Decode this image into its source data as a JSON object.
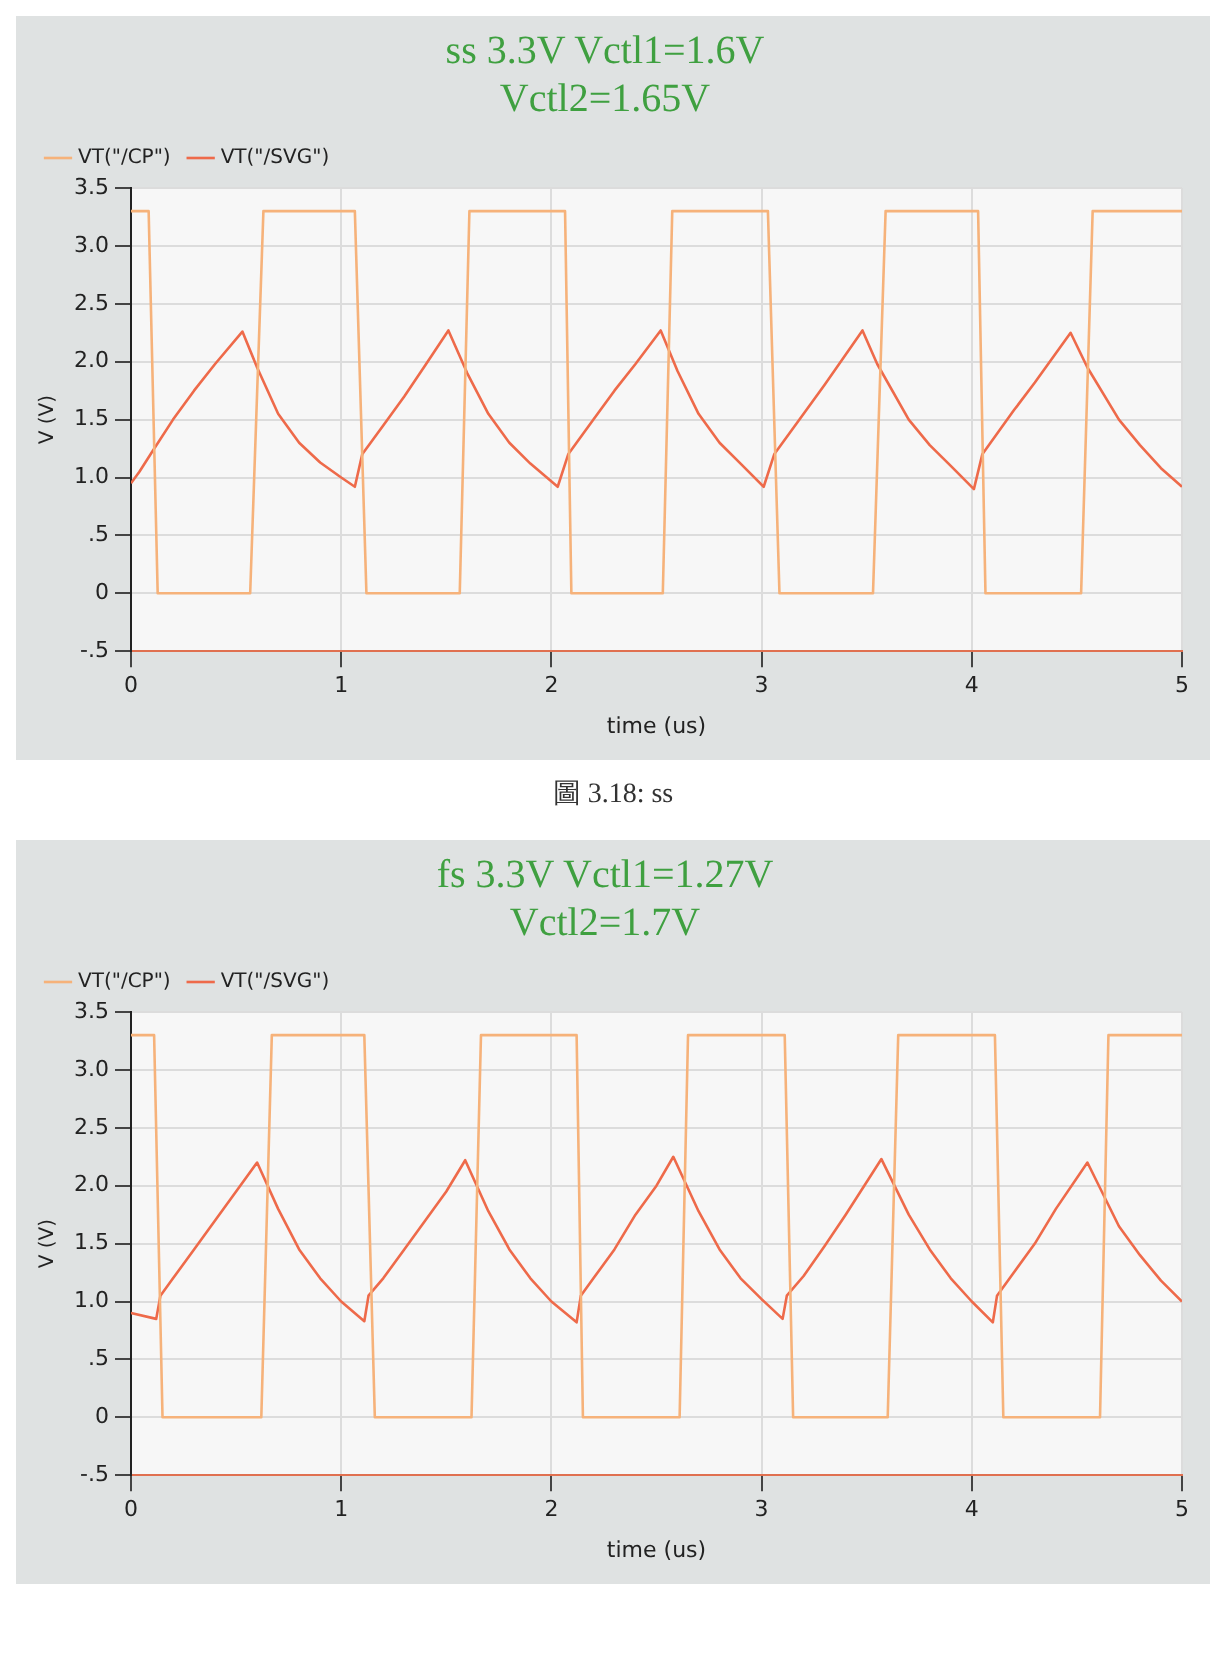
{
  "chart_data": [
    {
      "type": "line",
      "title": "ss 3.3V Vctl1=1.6V",
      "subtitle": "Vctl2=1.65V",
      "xlabel": "time (us)",
      "ylabel": "V (V)",
      "legend": "top left",
      "grid": true,
      "marker": "none",
      "line_style": "solid",
      "xlim": [
        0,
        5
      ],
      "ylim": [
        -0.5,
        3.5
      ],
      "xticks": [
        0,
        1,
        2,
        3,
        4,
        5
      ],
      "yticks": [
        {
          "value": -0.5,
          "label": "-.5"
        },
        {
          "value": 0,
          "label": "0"
        },
        {
          "value": 0.5,
          "label": ".5"
        },
        {
          "value": 1,
          "label": "1.0"
        },
        {
          "value": 1.5,
          "label": "1.5"
        },
        {
          "value": 2,
          "label": "2.0"
        },
        {
          "value": 2.5,
          "label": "2.5"
        },
        {
          "value": 3,
          "label": "3.0"
        },
        {
          "value": 3.5,
          "label": "3.5"
        }
      ],
      "annotations": [
        "圖 3.18: ss"
      ],
      "series": [
        {
          "name": "VT(\"/CP\")",
          "color": "#f6b27a",
          "x": [
            0,
            0.084,
            0.127,
            0.567,
            0.63,
            1.065,
            1.12,
            1.564,
            1.61,
            2.065,
            2.095,
            2.53,
            2.575,
            3.03,
            3.085,
            3.53,
            3.59,
            4.03,
            4.065,
            4.52,
            4.575,
            5
          ],
          "values": [
            3.3,
            3.3,
            0,
            0,
            3.3,
            3.3,
            0,
            0,
            3.3,
            3.3,
            0,
            0,
            3.3,
            3.3,
            0,
            0,
            3.3,
            3.3,
            0,
            0,
            3.3,
            3.3
          ]
        },
        {
          "name": "VT(\"/SVG\")",
          "color": "#ee6a4a",
          "x": [
            0,
            0.04,
            0.1,
            0.2,
            0.3,
            0.4,
            0.53,
            0.6,
            0.7,
            0.8,
            0.9,
            1.0,
            1.065,
            1.1,
            1.2,
            1.3,
            1.4,
            1.51,
            1.6,
            1.7,
            1.8,
            1.9,
            2.03,
            2.08,
            2.2,
            2.3,
            2.4,
            2.52,
            2.6,
            2.7,
            2.8,
            2.9,
            3.01,
            3.06,
            3.2,
            3.3,
            3.48,
            3.55,
            3.7,
            3.8,
            3.9,
            4.01,
            4.05,
            4.2,
            4.3,
            4.47,
            4.55,
            4.7,
            4.8,
            4.9,
            5
          ],
          "values": [
            0.95,
            1.05,
            1.22,
            1.5,
            1.75,
            1.98,
            2.26,
            1.95,
            1.55,
            1.3,
            1.13,
            1.0,
            0.92,
            1.2,
            1.45,
            1.7,
            1.97,
            2.27,
            1.9,
            1.55,
            1.3,
            1.12,
            0.92,
            1.2,
            1.5,
            1.75,
            1.98,
            2.27,
            1.92,
            1.55,
            1.3,
            1.12,
            0.92,
            1.2,
            1.55,
            1.8,
            2.27,
            1.98,
            1.5,
            1.28,
            1.1,
            0.9,
            1.2,
            1.58,
            1.82,
            2.25,
            1.95,
            1.5,
            1.28,
            1.08,
            0.92
          ]
        }
      ]
    },
    {
      "type": "line",
      "title": "fs 3.3V Vctl1=1.27V",
      "subtitle": "Vctl2=1.7V",
      "xlabel": "time (us)",
      "ylabel": "V (V)",
      "legend": "top left",
      "grid": true,
      "marker": "none",
      "line_style": "solid",
      "xlim": [
        0,
        5
      ],
      "ylim": [
        -0.5,
        3.5
      ],
      "xticks": [
        0,
        1,
        2,
        3,
        4,
        5
      ],
      "yticks": [
        {
          "value": -0.5,
          "label": "-.5"
        },
        {
          "value": 0,
          "label": "0"
        },
        {
          "value": 0.5,
          "label": ".5"
        },
        {
          "value": 1,
          "label": "1.0"
        },
        {
          "value": 1.5,
          "label": "1.5"
        },
        {
          "value": 2,
          "label": "2.0"
        },
        {
          "value": 2.5,
          "label": "2.5"
        },
        {
          "value": 3,
          "label": "3.0"
        },
        {
          "value": 3.5,
          "label": "3.5"
        }
      ],
      "series": [
        {
          "name": "VT(\"/CP\")",
          "color": "#f6b27a",
          "x": [
            0,
            0.11,
            0.15,
            0.62,
            0.67,
            1.11,
            1.16,
            1.62,
            1.665,
            2.12,
            2.15,
            2.61,
            2.65,
            3.11,
            3.15,
            3.6,
            3.65,
            4.11,
            4.15,
            4.61,
            4.65,
            5
          ],
          "values": [
            3.3,
            3.3,
            0,
            0,
            3.3,
            3.3,
            0,
            0,
            3.3,
            3.3,
            0,
            0,
            3.3,
            3.3,
            0,
            0,
            3.3,
            3.3,
            0,
            0,
            3.3,
            3.3
          ]
        },
        {
          "name": "VT(\"/SVG\")",
          "color": "#ee6a4a",
          "x": [
            0,
            0.12,
            0.14,
            0.2,
            0.3,
            0.4,
            0.5,
            0.6,
            0.7,
            0.8,
            0.9,
            1.0,
            1.11,
            1.13,
            1.2,
            1.3,
            1.4,
            1.5,
            1.59,
            1.7,
            1.8,
            1.9,
            2.0,
            2.12,
            2.14,
            2.2,
            2.3,
            2.4,
            2.5,
            2.58,
            2.7,
            2.8,
            2.9,
            3.0,
            3.1,
            3.12,
            3.2,
            3.3,
            3.4,
            3.57,
            3.7,
            3.8,
            3.9,
            4.0,
            4.1,
            4.12,
            4.2,
            4.3,
            4.4,
            4.55,
            4.7,
            4.8,
            4.9,
            5
          ],
          "values": [
            0.9,
            0.85,
            1.05,
            1.2,
            1.45,
            1.7,
            1.95,
            2.2,
            1.8,
            1.45,
            1.2,
            1.0,
            0.83,
            1.05,
            1.2,
            1.45,
            1.7,
            1.95,
            2.22,
            1.78,
            1.45,
            1.2,
            1.0,
            0.82,
            1.05,
            1.2,
            1.45,
            1.75,
            2.0,
            2.25,
            1.78,
            1.45,
            1.2,
            1.02,
            0.85,
            1.05,
            1.22,
            1.48,
            1.75,
            2.23,
            1.75,
            1.45,
            1.2,
            1.0,
            0.82,
            1.05,
            1.25,
            1.5,
            1.8,
            2.2,
            1.65,
            1.4,
            1.18,
            1.0
          ]
        }
      ]
    }
  ]
}
